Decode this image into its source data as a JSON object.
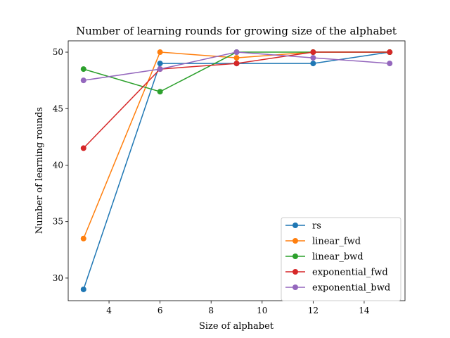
{
  "chart_data": {
    "type": "line",
    "title": "Number of learning rounds for growing size of the alphabet",
    "xlabel": "Size of alphabet",
    "ylabel": "Number of learning rounds",
    "xlim": [
      2.4,
      15.6
    ],
    "ylim": [
      28.0,
      51.0
    ],
    "xticks": [
      4,
      6,
      8,
      10,
      12,
      14
    ],
    "yticks": [
      30,
      35,
      40,
      45,
      50
    ],
    "x": [
      3,
      6,
      9,
      12,
      15
    ],
    "grid": false,
    "legend_position": "lower-right",
    "series": [
      {
        "name": "rs",
        "color": "#1f77b4",
        "values": [
          29.0,
          49.0,
          49.0,
          49.0,
          50.0
        ]
      },
      {
        "name": "linear_fwd",
        "color": "#ff7f0e",
        "values": [
          33.5,
          50.0,
          49.5,
          50.0,
          50.0
        ]
      },
      {
        "name": "linear_bwd",
        "color": "#2ca02c",
        "values": [
          48.5,
          46.5,
          50.0,
          50.0,
          50.0
        ]
      },
      {
        "name": "exponential_fwd",
        "color": "#d62728",
        "values": [
          41.5,
          48.5,
          49.0,
          50.0,
          50.0
        ]
      },
      {
        "name": "exponential_bwd",
        "color": "#9467bd",
        "values": [
          47.5,
          48.5,
          50.0,
          49.5,
          49.0
        ]
      }
    ]
  }
}
